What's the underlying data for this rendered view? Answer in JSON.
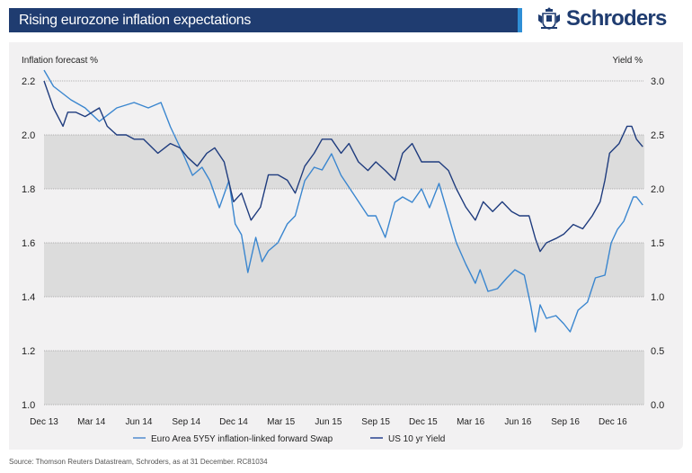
{
  "header": {
    "title": "Rising eurozone inflation expectations",
    "brand": "Schroders",
    "brand_color": "#1f3c70",
    "accent_color": "#2f8fd6"
  },
  "footer": {
    "source": "Source: Thomson Reuters Datastream, Schroders, as at 31 December. RC81034"
  },
  "chart_data": {
    "type": "line",
    "title": "Rising eurozone inflation expectations",
    "ylabel": "Inflation forecast %",
    "y2label": "Yield %",
    "xlabel": "",
    "x_unit": "months since Dec 13",
    "xlim": [
      0,
      38
    ],
    "ylim": [
      1.0,
      2.2
    ],
    "y2lim": [
      0.0,
      3.0
    ],
    "yticks": [
      "2.2",
      "2.0",
      "1.8",
      "1.6",
      "1.4",
      "1.2",
      "1.0"
    ],
    "y2ticks": [
      "3.0",
      "2.5",
      "2.0",
      "1.5",
      "1.0",
      "0.5",
      "0.0"
    ],
    "xticks": [
      {
        "label": "Dec 13",
        "month": 0
      },
      {
        "label": "Mar 14",
        "month": 3
      },
      {
        "label": "Jun 14",
        "month": 6
      },
      {
        "label": "Sep 14",
        "month": 9
      },
      {
        "label": "Dec 14",
        "month": 12
      },
      {
        "label": "Mar 15",
        "month": 15
      },
      {
        "label": "Jun 15",
        "month": 18
      },
      {
        "label": "Sep 15",
        "month": 21
      },
      {
        "label": "Dec 15",
        "month": 24
      },
      {
        "label": "Mar 16",
        "month": 27
      },
      {
        "label": "Jun 16",
        "month": 30
      },
      {
        "label": "Sep 16",
        "month": 33
      },
      {
        "label": "Dec 16",
        "month": 36
      }
    ],
    "grid": true,
    "alternating_bands": true,
    "legend_position": "bottom",
    "series": [
      {
        "name": "Euro Area 5Y5Y inflation-linked forward Swap",
        "axis": "left",
        "color": "#3a86cf",
        "x": [
          0,
          0.6,
          1.7,
          2.6,
          3.5,
          4.6,
          5.7,
          6.6,
          7.4,
          8.0,
          8.8,
          9.4,
          10.0,
          10.5,
          11.1,
          11.7,
          12.1,
          12.5,
          12.9,
          13.4,
          13.8,
          14.2,
          14.8,
          15.4,
          15.9,
          16.5,
          17.1,
          17.6,
          18.2,
          18.8,
          19.6,
          20.5,
          21.0,
          21.6,
          22.2,
          22.7,
          23.3,
          23.9,
          24.4,
          25.0,
          25.6,
          26.1,
          26.7,
          27.3,
          27.6,
          28.1,
          28.7,
          29.3,
          29.8,
          30.4,
          30.8,
          31.1,
          31.4,
          31.8,
          32.4,
          32.9,
          33.3,
          33.8,
          34.4,
          34.9,
          35.5,
          35.9,
          36.3,
          36.7,
          37.3,
          37.5,
          37.9
        ],
        "values": [
          2.24,
          2.18,
          2.13,
          2.1,
          2.05,
          2.1,
          2.12,
          2.1,
          2.12,
          2.03,
          1.93,
          1.85,
          1.88,
          1.83,
          1.73,
          1.83,
          1.67,
          1.63,
          1.49,
          1.62,
          1.53,
          1.57,
          1.6,
          1.67,
          1.7,
          1.83,
          1.88,
          1.87,
          1.93,
          1.85,
          1.78,
          1.7,
          1.7,
          1.62,
          1.75,
          1.77,
          1.75,
          1.8,
          1.73,
          1.82,
          1.7,
          1.6,
          1.52,
          1.45,
          1.5,
          1.42,
          1.43,
          1.47,
          1.5,
          1.48,
          1.37,
          1.27,
          1.37,
          1.32,
          1.33,
          1.3,
          1.27,
          1.35,
          1.38,
          1.47,
          1.48,
          1.6,
          1.65,
          1.68,
          1.77,
          1.77,
          1.74
        ]
      },
      {
        "name": "US 10 yr Yield",
        "axis": "right",
        "color": "#1f3c7e",
        "x": [
          0,
          0.6,
          1.2,
          1.5,
          2.0,
          2.6,
          3.5,
          4.0,
          4.6,
          5.2,
          5.7,
          6.3,
          7.2,
          8.0,
          8.6,
          9.1,
          9.7,
          10.3,
          10.8,
          11.4,
          12.0,
          12.5,
          13.1,
          13.7,
          14.2,
          14.8,
          15.4,
          15.9,
          16.5,
          17.1,
          17.6,
          18.2,
          18.8,
          19.3,
          19.9,
          20.5,
          21.0,
          21.6,
          22.2,
          22.7,
          23.3,
          23.9,
          24.4,
          25.0,
          25.6,
          26.1,
          26.7,
          27.3,
          27.8,
          28.4,
          29.0,
          29.6,
          30.1,
          30.7,
          31.1,
          31.4,
          31.8,
          32.4,
          32.9,
          33.5,
          34.1,
          34.7,
          35.2,
          35.5,
          35.8,
          36.4,
          36.9,
          37.2,
          37.5,
          37.9
        ],
        "values": [
          3.0,
          2.75,
          2.58,
          2.71,
          2.71,
          2.67,
          2.75,
          2.58,
          2.5,
          2.5,
          2.46,
          2.46,
          2.33,
          2.42,
          2.38,
          2.29,
          2.21,
          2.33,
          2.38,
          2.25,
          1.88,
          1.96,
          1.71,
          1.83,
          2.13,
          2.13,
          2.08,
          1.96,
          2.21,
          2.33,
          2.46,
          2.46,
          2.33,
          2.42,
          2.25,
          2.17,
          2.25,
          2.17,
          2.08,
          2.33,
          2.42,
          2.25,
          2.25,
          2.25,
          2.17,
          2.0,
          1.83,
          1.71,
          1.88,
          1.79,
          1.88,
          1.79,
          1.75,
          1.75,
          1.54,
          1.42,
          1.5,
          1.54,
          1.58,
          1.67,
          1.63,
          1.75,
          1.88,
          2.08,
          2.33,
          2.42,
          2.58,
          2.58,
          2.46,
          2.39
        ]
      }
    ]
  }
}
